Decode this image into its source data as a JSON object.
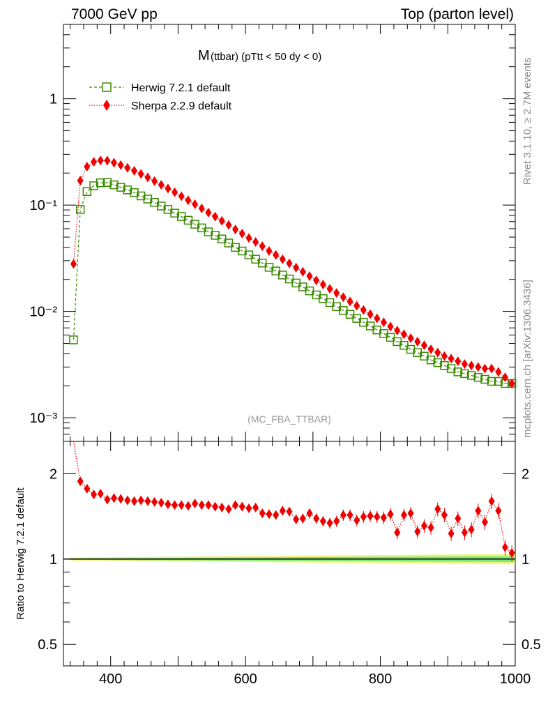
{
  "header": {
    "left": "7000 GeV pp",
    "right": "Top (parton level)"
  },
  "side": {
    "top": "Rivet 3.1.10, ≥ 2.7M events",
    "bottom": "mcplots.cern.ch [arXiv:1306.3436]"
  },
  "colors": {
    "herwig": "#3a8a00",
    "sherpa": "#ee0000",
    "band_inner": "#7ee87e",
    "band_outer": "#f2f27a"
  },
  "chart_data": [
    {
      "type": "line",
      "title_main": "M",
      "title_sub": "(ttbar) (pTtt < 50 dy < 0)",
      "watermark": "(MC_FBA_TTBAR)",
      "xlim": [
        330,
        1000
      ],
      "ylim": [
        0.0006,
        5
      ],
      "yscale": "log",
      "y_ticks": [
        "10⁻³",
        "10⁻²",
        "10⁻¹",
        "1"
      ],
      "legend_position": "top-left",
      "x": [
        345,
        355,
        365,
        375,
        385,
        395,
        405,
        415,
        425,
        435,
        445,
        455,
        465,
        475,
        485,
        495,
        505,
        515,
        525,
        535,
        545,
        555,
        565,
        575,
        585,
        595,
        605,
        615,
        625,
        635,
        645,
        655,
        665,
        675,
        685,
        695,
        705,
        715,
        725,
        735,
        745,
        755,
        765,
        775,
        785,
        795,
        805,
        815,
        825,
        835,
        845,
        855,
        865,
        875,
        885,
        895,
        905,
        915,
        925,
        935,
        945,
        955,
        965,
        975,
        985,
        995
      ],
      "series": [
        {
          "name": "Herwig 7.2.1 default",
          "values": [
            0.0054,
            0.091,
            0.134,
            0.152,
            0.162,
            0.163,
            0.155,
            0.147,
            0.139,
            0.131,
            0.122,
            0.114,
            0.106,
            0.098,
            0.091,
            0.084,
            0.078,
            0.072,
            0.066,
            0.061,
            0.056,
            0.052,
            0.048,
            0.044,
            0.04,
            0.037,
            0.034,
            0.031,
            0.0285,
            0.026,
            0.024,
            0.022,
            0.0202,
            0.0185,
            0.017,
            0.0156,
            0.0143,
            0.0132,
            0.0121,
            0.0111,
            0.0102,
            0.0094,
            0.0086,
            0.0079,
            0.0073,
            0.0067,
            0.0062,
            0.0057,
            0.0052,
            0.0048,
            0.0044,
            0.0041,
            0.0038,
            0.0035,
            0.0033,
            0.0031,
            0.0029,
            0.0027,
            0.0026,
            0.0025,
            0.0024,
            0.0023,
            0.0022,
            0.0022,
            0.0021,
            0.0021
          ]
        },
        {
          "name": "Sherpa 2.2.9 default",
          "values": [
            0.028,
            0.17,
            0.23,
            0.255,
            0.263,
            0.262,
            0.25,
            0.238,
            0.224,
            0.21,
            0.196,
            0.182,
            0.168,
            0.155,
            0.143,
            0.132,
            0.121,
            0.111,
            0.102,
            0.093,
            0.085,
            0.078,
            0.071,
            0.065,
            0.059,
            0.054,
            0.049,
            0.045,
            0.041,
            0.037,
            0.034,
            0.031,
            0.0283,
            0.0258,
            0.0236,
            0.0215,
            0.0196,
            0.0179,
            0.0163,
            0.0149,
            0.0136,
            0.0124,
            0.0113,
            0.0103,
            0.0094,
            0.0086,
            0.0079,
            0.0072,
            0.0066,
            0.0061,
            0.0056,
            0.0052,
            0.0048,
            0.0044,
            0.0041,
            0.0038,
            0.0036,
            0.0034,
            0.0032,
            0.0031,
            0.003,
            0.0029,
            0.0029,
            0.0027,
            0.0024,
            0.0021
          ]
        }
      ]
    },
    {
      "type": "line",
      "ylabel": "Ratio to Herwig 7.2.1 default",
      "xlim": [
        330,
        1000
      ],
      "ylim": [
        0.42,
        2.6
      ],
      "yscale": "log",
      "x_ticks": [
        400,
        600,
        800,
        1000
      ],
      "y_ticks": [
        0.5,
        1,
        2
      ],
      "reference_line": 1,
      "x": [
        345,
        355,
        365,
        375,
        385,
        395,
        405,
        415,
        425,
        435,
        445,
        455,
        465,
        475,
        485,
        495,
        505,
        515,
        525,
        535,
        545,
        555,
        565,
        575,
        585,
        595,
        605,
        615,
        625,
        635,
        645,
        655,
        665,
        675,
        685,
        695,
        705,
        715,
        725,
        735,
        745,
        755,
        765,
        775,
        785,
        795,
        805,
        815,
        825,
        835,
        845,
        855,
        865,
        875,
        885,
        895,
        905,
        915,
        925,
        935,
        945,
        955,
        965,
        975,
        985,
        995
      ],
      "series": [
        {
          "name": "Sherpa 2.2.9 default",
          "values": [
            2.9,
            1.88,
            1.77,
            1.69,
            1.7,
            1.62,
            1.64,
            1.63,
            1.61,
            1.6,
            1.61,
            1.6,
            1.59,
            1.58,
            1.56,
            1.55,
            1.55,
            1.54,
            1.57,
            1.55,
            1.55,
            1.53,
            1.52,
            1.5,
            1.55,
            1.53,
            1.51,
            1.52,
            1.45,
            1.44,
            1.43,
            1.48,
            1.47,
            1.38,
            1.39,
            1.45,
            1.39,
            1.36,
            1.34,
            1.36,
            1.43,
            1.43,
            1.37,
            1.41,
            1.42,
            1.41,
            1.4,
            1.44,
            1.24,
            1.43,
            1.45,
            1.25,
            1.31,
            1.29,
            1.5,
            1.43,
            1.23,
            1.39,
            1.24,
            1.27,
            1.48,
            1.35,
            1.6,
            1.48,
            1.1,
            1.05
          ]
        }
      ]
    }
  ]
}
